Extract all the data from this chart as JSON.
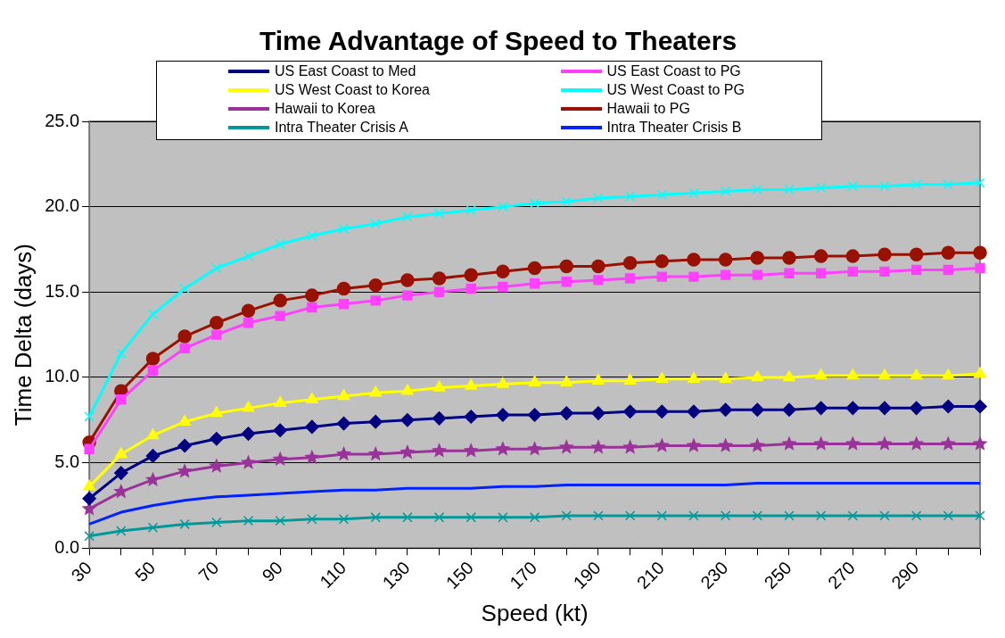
{
  "chart_data": {
    "type": "line",
    "title": "Time Advantage of Speed to Theaters",
    "xlabel": "Speed (kt)",
    "ylabel": "Time Delta (days)",
    "categories": [
      "30",
      null,
      "50",
      null,
      "70",
      null,
      "90",
      null,
      "110",
      null,
      "130",
      null,
      "150",
      null,
      "170",
      null,
      "190",
      null,
      "210",
      null,
      "230",
      null,
      "250",
      null,
      "270",
      null,
      "290",
      null,
      null
    ],
    "ylim": [
      0,
      25
    ],
    "yticks": [
      {
        "value": 0,
        "label": "0.0"
      },
      {
        "value": 5,
        "label": "5.0"
      },
      {
        "value": 10,
        "label": "10.0"
      },
      {
        "value": 15,
        "label": "15.0"
      },
      {
        "value": 20,
        "label": "20.0"
      },
      {
        "value": 25,
        "label": "25.0"
      }
    ],
    "grid": "y",
    "legend": "top",
    "series": [
      {
        "name": "US East Coast to Med",
        "color": "#000080",
        "marker": "diamond",
        "values": [
          2.9,
          4.4,
          5.4,
          6.0,
          6.4,
          6.7,
          6.9,
          7.1,
          7.3,
          7.4,
          7.5,
          7.6,
          7.7,
          7.8,
          7.8,
          7.9,
          7.9,
          8.0,
          8.0,
          8.0,
          8.1,
          8.1,
          8.1,
          8.2,
          8.2,
          8.2,
          8.2,
          8.3,
          8.3
        ]
      },
      {
        "name": "US East Coast to PG",
        "color": "#ff40ff",
        "marker": "square",
        "values": [
          5.8,
          8.7,
          10.4,
          11.7,
          12.5,
          13.2,
          13.6,
          14.1,
          14.3,
          14.5,
          14.8,
          15.0,
          15.2,
          15.3,
          15.5,
          15.6,
          15.7,
          15.8,
          15.9,
          15.9,
          16.0,
          16.0,
          16.1,
          16.1,
          16.2,
          16.2,
          16.3,
          16.3,
          16.4
        ]
      },
      {
        "name": "US West Coast to Korea",
        "color": "#ffff00",
        "marker": "triangle",
        "values": [
          3.6,
          5.5,
          6.6,
          7.4,
          7.9,
          8.2,
          8.5,
          8.7,
          8.9,
          9.1,
          9.2,
          9.4,
          9.5,
          9.6,
          9.7,
          9.7,
          9.8,
          9.8,
          9.9,
          9.9,
          9.9,
          10.0,
          10.0,
          10.1,
          10.1,
          10.1,
          10.1,
          10.1,
          10.2
        ]
      },
      {
        "name": "US West Coast to PG",
        "color": "#00ffff",
        "marker": "cross",
        "values": [
          7.7,
          11.4,
          13.7,
          15.2,
          16.4,
          17.1,
          17.8,
          18.3,
          18.7,
          19.0,
          19.4,
          19.6,
          19.8,
          20.0,
          20.2,
          20.3,
          20.5,
          20.6,
          20.7,
          20.8,
          20.9,
          21.0,
          21.0,
          21.1,
          21.2,
          21.2,
          21.3,
          21.3,
          21.4
        ]
      },
      {
        "name": "Hawaii to Korea",
        "color": "#993399",
        "marker": "star",
        "values": [
          2.3,
          3.3,
          4.0,
          4.5,
          4.8,
          5.0,
          5.2,
          5.3,
          5.5,
          5.5,
          5.6,
          5.7,
          5.7,
          5.8,
          5.8,
          5.9,
          5.9,
          5.9,
          6.0,
          6.0,
          6.0,
          6.0,
          6.1,
          6.1,
          6.1,
          6.1,
          6.1,
          6.1,
          6.1
        ]
      },
      {
        "name": "Hawaii to PG",
        "color": "#991100",
        "marker": "circle",
        "values": [
          6.2,
          9.2,
          11.1,
          12.4,
          13.2,
          13.9,
          14.5,
          14.8,
          15.2,
          15.4,
          15.7,
          15.8,
          16.0,
          16.2,
          16.4,
          16.5,
          16.5,
          16.7,
          16.8,
          16.9,
          16.9,
          17.0,
          17.0,
          17.1,
          17.1,
          17.2,
          17.2,
          17.3,
          17.3
        ]
      },
      {
        "name": "Intra Theater Crisis A",
        "color": "#009999",
        "marker": "cross",
        "values": [
          0.7,
          1.0,
          1.2,
          1.4,
          1.5,
          1.6,
          1.6,
          1.7,
          1.7,
          1.8,
          1.8,
          1.8,
          1.8,
          1.8,
          1.8,
          1.9,
          1.9,
          1.9,
          1.9,
          1.9,
          1.9,
          1.9,
          1.9,
          1.9,
          1.9,
          1.9,
          1.9,
          1.9,
          1.9
        ]
      },
      {
        "name": "Intra Theater Crisis B",
        "color": "#0022ff",
        "marker": "none",
        "values": [
          1.4,
          2.1,
          2.5,
          2.8,
          3.0,
          3.1,
          3.2,
          3.3,
          3.4,
          3.4,
          3.5,
          3.5,
          3.5,
          3.6,
          3.6,
          3.7,
          3.7,
          3.7,
          3.7,
          3.7,
          3.7,
          3.8,
          3.8,
          3.8,
          3.8,
          3.8,
          3.8,
          3.8,
          3.8
        ]
      }
    ]
  }
}
